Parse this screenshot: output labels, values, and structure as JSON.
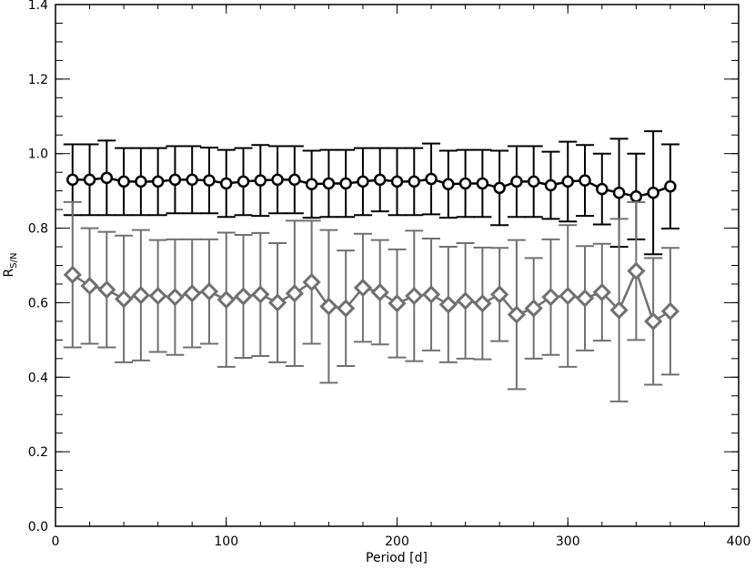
{
  "chart_data": {
    "type": "errorbar",
    "xlabel": "Period [d]",
    "ylabel": "R",
    "ylabel_subscript": "S/N",
    "x": [
      10,
      20,
      30,
      40,
      50,
      60,
      70,
      80,
      90,
      100,
      110,
      120,
      130,
      140,
      150,
      160,
      170,
      180,
      190,
      200,
      210,
      220,
      230,
      240,
      250,
      260,
      270,
      280,
      290,
      300,
      310,
      320,
      330,
      340,
      350,
      360
    ],
    "series": [
      {
        "color": "#000000",
        "marker": "circle",
        "values": [
          0.93,
          0.93,
          0.935,
          0.925,
          0.925,
          0.925,
          0.93,
          0.93,
          0.928,
          0.92,
          0.925,
          0.928,
          0.93,
          0.93,
          0.918,
          0.92,
          0.92,
          0.925,
          0.93,
          0.925,
          0.925,
          0.932,
          0.918,
          0.92,
          0.92,
          0.908,
          0.925,
          0.925,
          0.915,
          0.925,
          0.928,
          0.905,
          0.895,
          0.885,
          0.895,
          0.912
        ],
        "errors": [
          0.095,
          0.095,
          0.1,
          0.09,
          0.09,
          0.09,
          0.09,
          0.09,
          0.088,
          0.09,
          0.09,
          0.095,
          0.09,
          0.09,
          0.09,
          0.09,
          0.09,
          0.09,
          0.085,
          0.09,
          0.09,
          0.095,
          0.09,
          0.09,
          0.09,
          0.1,
          0.095,
          0.095,
          0.09,
          0.107,
          0.095,
          0.095,
          0.145,
          0.115,
          0.165,
          0.113
        ]
      },
      {
        "color": "#707070",
        "marker": "diamond",
        "values": [
          0.675,
          0.645,
          0.635,
          0.61,
          0.62,
          0.618,
          0.615,
          0.625,
          0.63,
          0.608,
          0.617,
          0.622,
          0.6,
          0.625,
          0.655,
          0.59,
          0.585,
          0.64,
          0.628,
          0.598,
          0.618,
          0.622,
          0.595,
          0.605,
          0.598,
          0.622,
          0.568,
          0.585,
          0.615,
          0.618,
          0.612,
          0.628,
          0.58,
          0.685,
          0.55,
          0.577
        ],
        "errors": [
          0.195,
          0.155,
          0.155,
          0.17,
          0.175,
          0.15,
          0.155,
          0.145,
          0.14,
          0.18,
          0.165,
          0.165,
          0.16,
          0.195,
          0.165,
          0.205,
          0.155,
          0.145,
          0.14,
          0.145,
          0.175,
          0.15,
          0.155,
          0.155,
          0.15,
          0.125,
          0.2,
          0.135,
          0.155,
          0.19,
          0.14,
          0.13,
          0.245,
          0.185,
          0.17,
          0.17
        ]
      }
    ],
    "xlim": [
      0,
      400
    ],
    "xticks": [
      0,
      100,
      200,
      300,
      400
    ],
    "ylim": [
      0,
      1.4
    ],
    "yticks": [
      {
        "value": 0,
        "label": "0.0"
      },
      0.2,
      0.4,
      0.6,
      0.8,
      {
        "value": 1,
        "label": "1.0"
      },
      1.2,
      1.4
    ],
    "x_minor_step": 20,
    "y_minor_step": 0.05
  }
}
